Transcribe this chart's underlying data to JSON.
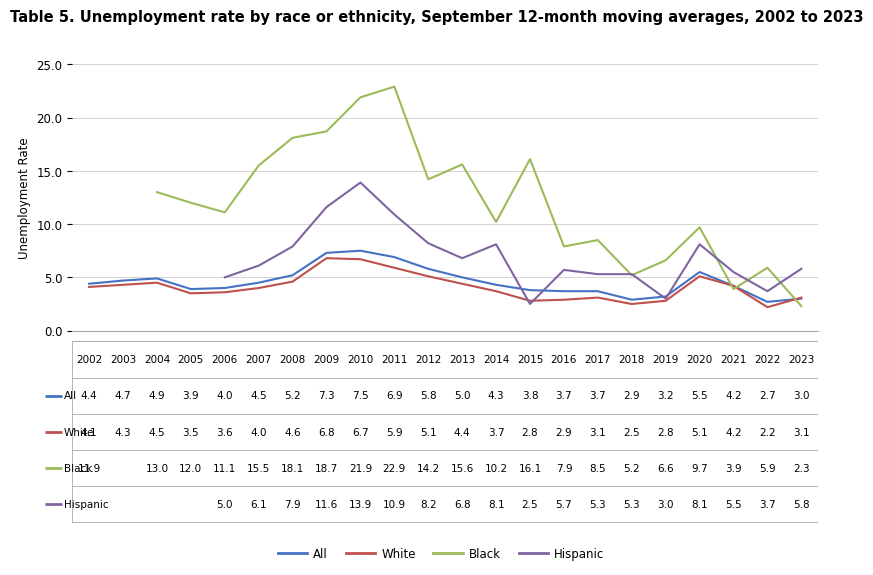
{
  "title": "Table 5. Unemployment rate by race or ethnicity, September 12-month moving averages, 2002 to 2023",
  "ylabel": "Unemployment Rate",
  "years": [
    2002,
    2003,
    2004,
    2005,
    2006,
    2007,
    2008,
    2009,
    2010,
    2011,
    2012,
    2013,
    2014,
    2015,
    2016,
    2017,
    2018,
    2019,
    2020,
    2021,
    2022,
    2023
  ],
  "all": [
    4.4,
    4.7,
    4.9,
    3.9,
    4.0,
    4.5,
    5.2,
    7.3,
    7.5,
    6.9,
    5.8,
    5.0,
    4.3,
    3.8,
    3.7,
    3.7,
    2.9,
    3.2,
    5.5,
    4.2,
    2.7,
    3.0
  ],
  "white": [
    4.1,
    4.3,
    4.5,
    3.5,
    3.6,
    4.0,
    4.6,
    6.8,
    6.7,
    5.9,
    5.1,
    4.4,
    3.7,
    2.8,
    2.9,
    3.1,
    2.5,
    2.8,
    5.1,
    4.2,
    2.2,
    3.1
  ],
  "black": [
    11.9,
    null,
    13.0,
    12.0,
    11.1,
    15.5,
    18.1,
    18.7,
    21.9,
    22.9,
    14.2,
    15.6,
    10.2,
    16.1,
    7.9,
    8.5,
    5.2,
    6.6,
    9.7,
    3.9,
    5.9,
    2.3
  ],
  "hispanic": [
    null,
    null,
    null,
    null,
    5.0,
    6.1,
    7.9,
    11.6,
    13.9,
    10.9,
    8.2,
    6.8,
    8.1,
    2.5,
    5.7,
    5.3,
    5.3,
    3.0,
    8.1,
    5.5,
    3.7,
    5.8
  ],
  "colors": {
    "all": "#4472C4",
    "white": "#C0504D",
    "black": "#9BBB59",
    "hispanic": "#8064A2"
  },
  "table_rows": [
    {
      "label": "All",
      "values": [
        "4.4",
        "4.7",
        "4.9",
        "3.9",
        "4.0",
        "4.5",
        "5.2",
        "7.3",
        "7.5",
        "6.9",
        "5.8",
        "5.0",
        "4.3",
        "3.8",
        "3.7",
        "3.7",
        "2.9",
        "3.2",
        "5.5",
        "4.2",
        "2.7",
        "3.0"
      ]
    },
    {
      "label": "White",
      "values": [
        "4.1",
        "4.3",
        "4.5",
        "3.5",
        "3.6",
        "4.0",
        "4.6",
        "6.8",
        "6.7",
        "5.9",
        "5.1",
        "4.4",
        "3.7",
        "2.8",
        "2.9",
        "3.1",
        "2.5",
        "2.8",
        "5.1",
        "4.2",
        "2.2",
        "3.1"
      ]
    },
    {
      "label": "Black",
      "values": [
        "11.9",
        "",
        "13.0",
        "12.0",
        "11.1",
        "15.5",
        "18.1",
        "18.7",
        "21.9",
        "22.9",
        "14.2",
        "15.6",
        "10.2",
        "16.1",
        "7.9",
        "8.5",
        "5.2",
        "6.6",
        "9.7",
        "3.9",
        "5.9",
        "2.3"
      ]
    },
    {
      "label": "Hispanic",
      "values": [
        "",
        "",
        "",
        "",
        "5.0",
        "6.1",
        "7.9",
        "11.6",
        "13.9",
        "10.9",
        "8.2",
        "6.8",
        "8.1",
        "2.5",
        "5.7",
        "5.3",
        "5.3",
        "3.0",
        "8.1",
        "5.5",
        "3.7",
        "5.8"
      ]
    }
  ],
  "ylim": [
    0.0,
    25.0
  ],
  "yticks": [
    0.0,
    5.0,
    10.0,
    15.0,
    20.0,
    25.0
  ],
  "background_color": "#FFFFFF",
  "grid_color": "#D3D3D3",
  "title_fontsize": 10.5,
  "axis_fontsize": 8.5,
  "table_fontsize": 7.5
}
